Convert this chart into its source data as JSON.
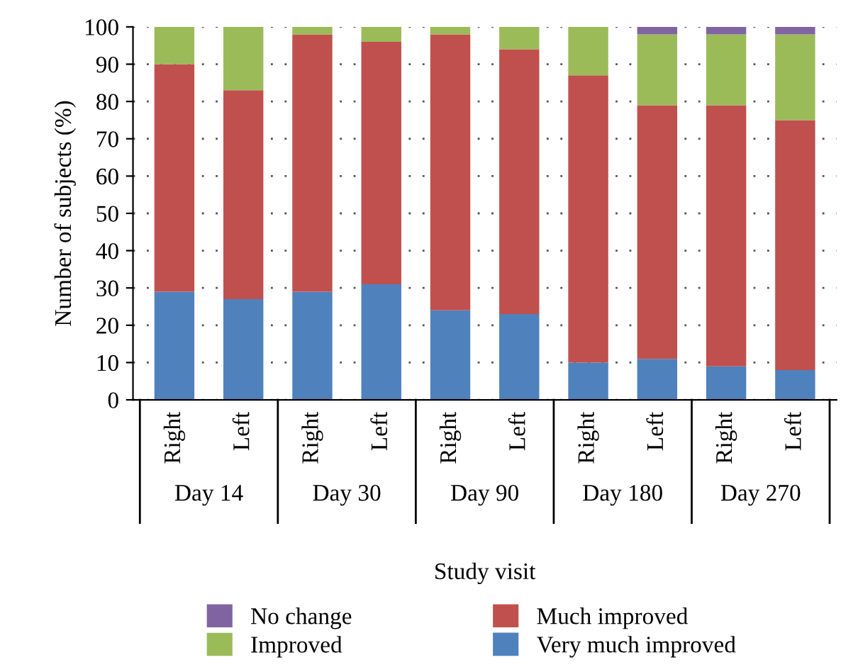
{
  "chart_data": {
    "type": "bar",
    "stacked": true,
    "xlabel": "Study visit",
    "ylabel": "Number of subjects (%)",
    "categories": [
      "Right",
      "Left",
      "Right",
      "Left",
      "Right",
      "Left",
      "Right",
      "Left",
      "Right",
      "Left"
    ],
    "annotations": [
      "Day 14",
      "Day 30",
      "Day 90",
      "Day 180",
      "Day 270"
    ],
    "series": [
      {
        "name": "Very much improved",
        "color": "#4f81bd",
        "values": [
          29,
          27,
          29,
          31,
          24,
          23,
          10,
          11,
          9,
          8
        ]
      },
      {
        "name": "Much improved",
        "color": "#c0504d",
        "values": [
          61,
          56,
          69,
          65,
          74,
          71,
          77,
          68,
          70,
          67
        ]
      },
      {
        "name": "Improved",
        "color": "#9bbb59",
        "values": [
          10,
          17,
          2,
          4,
          2,
          6,
          13,
          19,
          19,
          23
        ]
      },
      {
        "name": "No change",
        "color": "#8064a2",
        "values": [
          0,
          0,
          0,
          0,
          0,
          0,
          0,
          2,
          2,
          2
        ]
      }
    ],
    "ylim": [
      0,
      100
    ],
    "yticks": [
      0,
      10,
      20,
      30,
      40,
      50,
      60,
      70,
      80,
      90,
      100
    ],
    "grid": "y",
    "legend": "bottom"
  }
}
